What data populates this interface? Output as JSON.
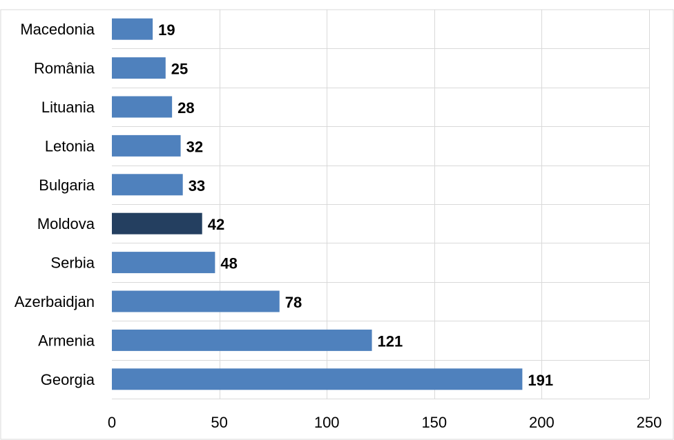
{
  "chart_data": {
    "type": "bar",
    "orientation": "horizontal",
    "categories": [
      "Macedonia",
      "România",
      "Lituania",
      "Letonia",
      "Bulgaria",
      "Moldova",
      "Serbia",
      "Azerbaidjan",
      "Armenia",
      "Georgia"
    ],
    "values": [
      19,
      25,
      28,
      32,
      33,
      42,
      48,
      78,
      121,
      191
    ],
    "data_labels": [
      "19",
      "25",
      "28",
      "32",
      "33",
      "42",
      "48",
      "78",
      "121",
      "191"
    ],
    "highlight_category": "Moldova",
    "xlim": [
      0,
      250
    ],
    "x_ticks": [
      0,
      50,
      100,
      150,
      200,
      250
    ],
    "x_tick_labels": [
      "0",
      "50",
      "100",
      "150",
      "200",
      "250"
    ],
    "grid": "vertical",
    "legend": "none",
    "title": "",
    "xlabel": "",
    "ylabel": "",
    "colors": {
      "bar": "#4f81bd",
      "highlight": "#243f60",
      "grid": "#d9d9d9"
    }
  }
}
